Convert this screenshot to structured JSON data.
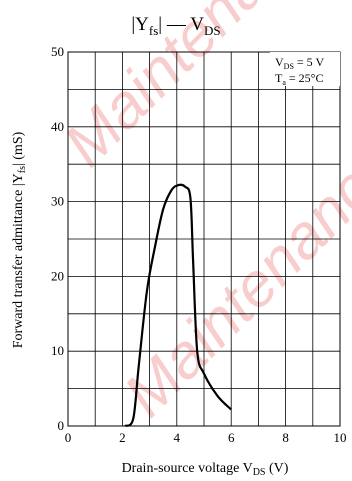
{
  "chart_data": {
    "type": "line",
    "title": "|Y",
    "title_sub": "fs",
    "title_rest": "| — V",
    "title_sub2": "DS",
    "xlabel": "Drain-source voltage  V",
    "xlabel_sub": "DS",
    "xlabel_unit": "(V)",
    "ylabel": "Forward transfer admittance  |Y",
    "ylabel_sub": "fs",
    "ylabel_unit": "|  (mS)",
    "xlim": [
      0,
      10
    ],
    "ylim": [
      0,
      50
    ],
    "x_ticks": [
      0,
      2,
      4,
      6,
      8,
      10
    ],
    "x_tick_labels": [
      "0",
      "2",
      "4",
      "6",
      "8",
      "10"
    ],
    "y_ticks": [
      0,
      10,
      20,
      30,
      40,
      50
    ],
    "y_tick_labels": [
      "0",
      "10",
      "20",
      "30",
      "40",
      "50"
    ],
    "x_minor_step": 1,
    "y_minor_step": 5,
    "grid": true,
    "conditions": [
      {
        "main": "V",
        "sub": "DS",
        "rest": " = 5 V"
      },
      {
        "main": "T",
        "sub": "a",
        "rest": " = 25°C"
      }
    ],
    "conditions_placement": "top-right",
    "watermark": "Maintenance",
    "watermark_color": "#f4a6a6",
    "line_color": "#000000",
    "series": [
      {
        "x": [
          2.1,
          2.4,
          2.6,
          2.9,
          3.2,
          3.5,
          3.8,
          4.05,
          4.3,
          4.5,
          4.6,
          4.75,
          5.0,
          5.5,
          6.0
        ],
        "y": [
          0.0,
          1.0,
          8.0,
          18.0,
          24.0,
          29.0,
          31.5,
          32.2,
          32.0,
          30.5,
          22.0,
          10.0,
          7.0,
          4.0,
          2.2
        ]
      }
    ]
  }
}
